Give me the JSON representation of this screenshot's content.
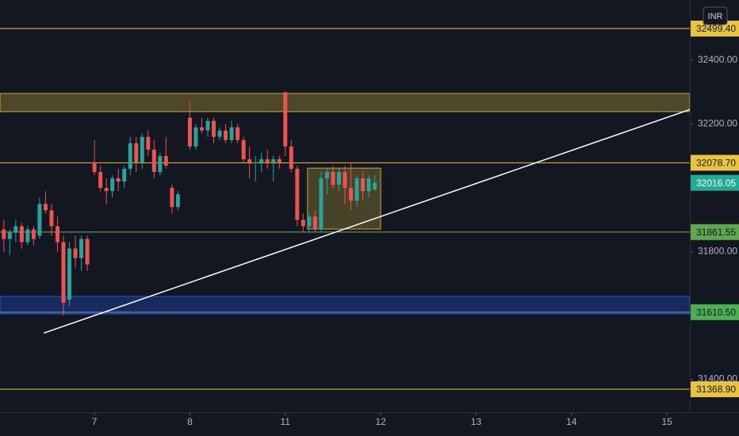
{
  "chart_data": {
    "type": "candlestick",
    "currency": "INR",
    "up_color": "#26a69a",
    "down_color": "#ef5350",
    "x": [
      6.05,
      6.1125,
      6.175,
      6.2375,
      6.3,
      6.3625,
      6.425,
      6.4875,
      6.55,
      6.6125,
      6.675,
      6.7375,
      6.8,
      6.8625,
      6.925,
      7,
      7.0625,
      7.125,
      7.1875,
      7.25,
      7.3125,
      7.375,
      7.4375,
      7.5,
      7.5625,
      7.625,
      7.6875,
      7.75,
      7.8125,
      7.875,
      8,
      8.0625,
      8.125,
      8.1875,
      8.25,
      8.3125,
      8.375,
      8.4375,
      8.5,
      8.5625,
      8.625,
      8.6875,
      8.75,
      8.8125,
      8.875,
      8.9375,
      9,
      9.0625,
      9.125,
      9.1875,
      9.25,
      9.3125,
      9.375,
      9.4375,
      9.5,
      9.5625,
      9.625,
      9.6875,
      9.75,
      9.8125,
      9.875,
      9.9375
    ],
    "open": [
      31870,
      31840,
      31860,
      31880,
      31830,
      31870,
      31850,
      31950,
      31930,
      31880,
      31830,
      31650,
      31810,
      31780,
      31840,
      32080,
      32050,
      32000,
      31990,
      32030,
      32020,
      32060,
      32140,
      32080,
      32160,
      32120,
      32050,
      32100,
      32000,
      31940,
      32220,
      32130,
      32190,
      32180,
      32210,
      32160,
      32180,
      32150,
      32190,
      32150,
      32090,
      32080,
      32080,
      32090,
      32080,
      32090,
      32300,
      32130,
      32060,
      31900,
      31880,
      31910,
      31870,
      32030,
      32050,
      32010,
      32050,
      32000,
      31960,
      32030,
      31990,
      31995
    ],
    "high": [
      31900,
      31870,
      31900,
      31890,
      31880,
      31880,
      31970,
      31990,
      31950,
      31910,
      31850,
      31830,
      31850,
      31850,
      31850,
      32150,
      32070,
      32030,
      32040,
      32060,
      32070,
      32160,
      32160,
      32170,
      32180,
      32150,
      32110,
      32160,
      32010,
      31990,
      32270,
      32200,
      32220,
      32220,
      32220,
      32190,
      32200,
      32210,
      32200,
      32160,
      32130,
      32100,
      32110,
      32120,
      32100,
      32100,
      32300,
      32150,
      32070,
      31920,
      31920,
      31930,
      32050,
      32060,
      32070,
      32060,
      32070,
      32080,
      32040,
      32050,
      32040,
      32040
    ],
    "low": [
      31800,
      31790,
      31830,
      31810,
      31820,
      31820,
      31840,
      31920,
      31850,
      31800,
      31600,
      31630,
      31750,
      31740,
      31740,
      32040,
      31990,
      31950,
      31970,
      31990,
      32000,
      32040,
      32050,
      32060,
      32100,
      32030,
      32040,
      32060,
      31920,
      31930,
      32120,
      32120,
      32170,
      32160,
      32140,
      32150,
      32140,
      32140,
      32140,
      32080,
      32030,
      32020,
      32050,
      32060,
      32020,
      32060,
      32100,
      32050,
      31880,
      31860,
      31860,
      31860,
      31860,
      31980,
      32000,
      31990,
      31950,
      31930,
      31940,
      31960,
      31970,
      31990
    ],
    "close": [
      31840,
      31860,
      31880,
      31830,
      31870,
      31840,
      31950,
      31930,
      31880,
      31830,
      31640,
      31810,
      31780,
      31840,
      31760,
      32050,
      32000,
      31990,
      32030,
      32020,
      32060,
      32140,
      32080,
      32160,
      32120,
      32050,
      32100,
      32070,
      31940,
      31980,
      32130,
      32190,
      32180,
      32210,
      32160,
      32180,
      32150,
      32190,
      32150,
      32090,
      32080,
      32080,
      32090,
      32080,
      32090,
      32080,
      32130,
      32060,
      31900,
      31880,
      31910,
      31870,
      32030,
      32050,
      32010,
      32050,
      32000,
      31960,
      32030,
      31990,
      32030,
      32016.05
    ],
    "xlim": [
      6.01,
      13.24
    ],
    "xticks": [
      {
        "value": 7,
        "label": "7"
      },
      {
        "value": 8,
        "label": "8"
      },
      {
        "value": 9,
        "label": "11"
      },
      {
        "value": 10,
        "label": "12"
      },
      {
        "value": 11,
        "label": "13"
      },
      {
        "value": 12,
        "label": "14"
      },
      {
        "value": 13,
        "label": "15"
      }
    ],
    "ylim": [
      31297,
      32589
    ],
    "yticks": [
      {
        "value": 31400,
        "label": "31400.00"
      },
      {
        "value": 31800,
        "label": "31800.00"
      },
      {
        "value": 32200,
        "label": "32200.00"
      },
      {
        "value": 32400,
        "label": "32400.00"
      }
    ],
    "levels": [
      {
        "value": 32499.4,
        "label": "32499.40",
        "color": "#e9c53f",
        "badge_color": "#e9c53f"
      },
      {
        "value": 32078.7,
        "label": "32078.70",
        "color": "#e9c53f",
        "badge_color": "#e9c53f"
      },
      {
        "value": 31861.55,
        "label": "31861.55",
        "color": "#6fae5a",
        "badge_color": "#5fa84e"
      },
      {
        "value": 31610.5,
        "label": "31610.50",
        "color": "#7b9fd6",
        "badge_color": "#4caf50"
      },
      {
        "value": 31368.9,
        "label": "31368.90",
        "color": "#e9c53f",
        "badge_color": "#e9c53f"
      }
    ],
    "zones": [
      {
        "range": [
          32239,
          32296
        ],
        "color": "#e9c53f"
      },
      {
        "range": [
          31605,
          31660
        ],
        "color": "#2962ff"
      }
    ],
    "box": {
      "x": [
        9.233,
        10.0
      ],
      "y": [
        31871,
        32062
      ],
      "color": "#e9c53f"
    },
    "trendline": {
      "x": [
        6.468,
        13.243
      ],
      "y": [
        31545,
        32246
      ],
      "color": "#ffffff"
    },
    "last_price_color": "#22ab94"
  }
}
